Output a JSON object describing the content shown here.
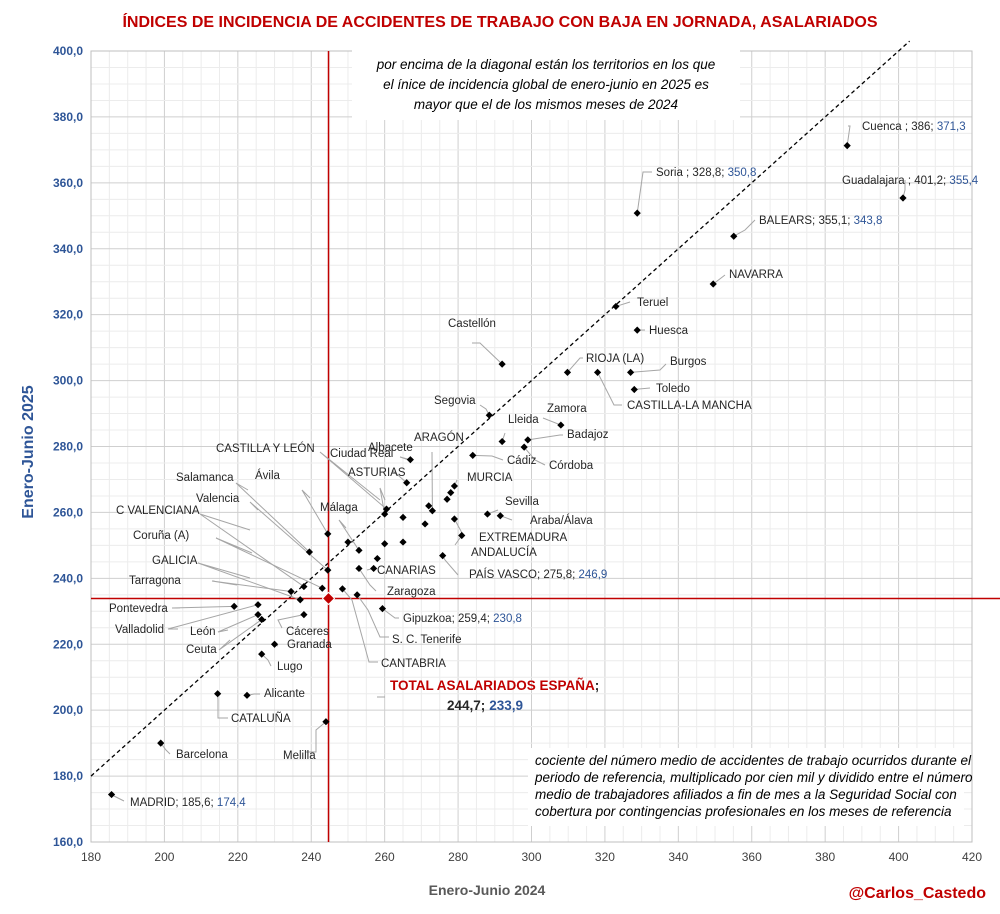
{
  "chart_data": {
    "type": "scatter",
    "title": "ÍNDICES DE INCIDENCIA DE ACCIDENTES DE TRABAJO CON BAJA EN JORNADA, ASALARIADOS",
    "xlabel": "Enero-Junio 2024",
    "ylabel": "Enero-Junio 2025",
    "xlim": [
      180,
      420
    ],
    "ylim": [
      160,
      400
    ],
    "x_ticks": [
      "180",
      "200",
      "220",
      "240",
      "260",
      "280",
      "300",
      "320",
      "340",
      "360",
      "380",
      "400",
      "420"
    ],
    "y_ticks": [
      "160,0",
      "180,0",
      "200,0",
      "220,0",
      "240,0",
      "260,0",
      "280,0",
      "300,0",
      "320,0",
      "340,0",
      "360,0",
      "380,0",
      "400,0"
    ],
    "grid": true,
    "diagonal": "y = x",
    "reference": {
      "x": 244.7,
      "y": 233.9,
      "name": "TOTAL ASALARIADOS ESPAÑA",
      "sep": ";",
      "x_text": "244,7;",
      "y_text": "233,9"
    },
    "points": [
      {
        "name": "Cuenca",
        "x": 386.0,
        "y": 371.3,
        "lbl": "Cuenca ; 386; ",
        "val": "371,3"
      },
      {
        "name": "Guadalajara",
        "x": 401.2,
        "y": 355.4,
        "lbl": "Guadalajara ; 401,2; ",
        "val": "355,4"
      },
      {
        "name": "Soria",
        "x": 328.8,
        "y": 350.8,
        "lbl": "Soria ; 328,8; ",
        "val": "350,8"
      },
      {
        "name": "BALEARS",
        "x": 355.1,
        "y": 343.8,
        "lbl": "BALEARS; 355,1; ",
        "val": "343,8"
      },
      {
        "name": "NAVARRA",
        "x": 349.5,
        "y": 329.3,
        "lbl": "NAVARRA",
        "val": ""
      },
      {
        "name": "Teruel",
        "x": 323.0,
        "y": 322.5,
        "lbl": "Teruel",
        "val": ""
      },
      {
        "name": "Huesca",
        "x": 328.8,
        "y": 315.3,
        "lbl": "Huesca",
        "val": ""
      },
      {
        "name": "Castellón",
        "x": 292.0,
        "y": 305.0,
        "lbl": "Castellón",
        "val": ""
      },
      {
        "name": "RIOJA (LA)",
        "x": 309.8,
        "y": 302.5,
        "lbl": "RIOJA (LA)",
        "val": ""
      },
      {
        "name": "Burgos",
        "x": 327.0,
        "y": 302.5,
        "lbl": "Burgos",
        "val": ""
      },
      {
        "name": "CASTILLA-LA MANCHA",
        "x": 318.0,
        "y": 302.5,
        "lbl": "CASTILLA-LA MANCHA",
        "val": ""
      },
      {
        "name": "Toledo",
        "x": 328.0,
        "y": 297.3,
        "lbl": "Toledo",
        "val": ""
      },
      {
        "name": "Segovia",
        "x": 288.5,
        "y": 289.5,
        "lbl": "Segovia",
        "val": ""
      },
      {
        "name": "Zamora",
        "x": 308.0,
        "y": 286.5,
        "lbl": "Zamora",
        "val": ""
      },
      {
        "name": "Lleida",
        "x": 292.0,
        "y": 281.5,
        "lbl": "Lleida",
        "val": ""
      },
      {
        "name": "Badajoz",
        "x": 299.0,
        "y": 282.0,
        "lbl": "Badajoz",
        "val": ""
      },
      {
        "name": "Córdoba",
        "x": 298.0,
        "y": 279.8,
        "lbl": "Córdoba",
        "val": ""
      },
      {
        "name": "Cádiz",
        "x": 284.0,
        "y": 277.3,
        "lbl": "Cádiz",
        "val": ""
      },
      {
        "name": "Albacete",
        "x": 267.0,
        "y": 276.0,
        "lbl": "Albacete",
        "val": ""
      },
      {
        "name": "ARAGÓN",
        "x": 273.0,
        "y": 260.5,
        "lbl": "ARAGÓN",
        "val": ""
      },
      {
        "name": "CASTILLA Y LEÓN",
        "x": 260.5,
        "y": 261.0,
        "lbl": "CASTILLA Y LEÓN",
        "val": ""
      },
      {
        "name": "Ciudad Real",
        "x": 266.0,
        "y": 269.0,
        "lbl": "Ciudad Real",
        "val": ""
      },
      {
        "name": "ASTURIAS",
        "x": 260.0,
        "y": 259.5,
        "lbl": "ASTURIAS",
        "val": ""
      },
      {
        "name": "MURCIA",
        "x": 279.0,
        "y": 268.0,
        "lbl": "MURCIA",
        "val": ""
      },
      {
        "name": "Sevilla",
        "x": 288.0,
        "y": 259.5,
        "lbl": "Sevilla",
        "val": ""
      },
      {
        "name": "Araba/Álava",
        "x": 291.5,
        "y": 259.0,
        "lbl": "Araba/Álava",
        "val": ""
      },
      {
        "name": "EXTREMADURA",
        "x": 279.0,
        "y": 258.0,
        "lbl": "EXTREMADURA",
        "val": ""
      },
      {
        "name": "ANDALUCÍA",
        "x": 281.0,
        "y": 253.0,
        "lbl": "ANDALUCÍA",
        "val": ""
      },
      {
        "name": "PAÍS VASCO",
        "x": 275.8,
        "y": 246.9,
        "lbl": "PAÍS VASCO; 275,8; ",
        "val": "246,9"
      },
      {
        "name": "Ávila",
        "x": 244.5,
        "y": 253.5,
        "lbl": "Ávila",
        "val": ""
      },
      {
        "name": "Salamanca",
        "x": 239.5,
        "y": 248.0,
        "lbl": "Salamanca",
        "val": ""
      },
      {
        "name": "Valencia",
        "x": 244.5,
        "y": 242.5,
        "lbl": "Valencia",
        "val": ""
      },
      {
        "name": "Málaga",
        "x": 253.0,
        "y": 248.5,
        "lbl": "Málaga",
        "val": ""
      },
      {
        "name": "C VALENCIANA",
        "x": 238.0,
        "y": 237.5,
        "lbl": "C VALENCIANA",
        "val": ""
      },
      {
        "name": "Coruña (A)",
        "x": 243.0,
        "y": 237.0,
        "lbl": "Coruña (A)",
        "val": ""
      },
      {
        "name": "GALICIA",
        "x": 237.0,
        "y": 233.5,
        "lbl": "GALICIA",
        "val": ""
      },
      {
        "name": "Tarragona",
        "x": 234.5,
        "y": 236.0,
        "lbl": "Tarragona",
        "val": ""
      },
      {
        "name": "CANARIAS",
        "x": 257.0,
        "y": 243.0,
        "lbl": "CANARIAS",
        "val": ""
      },
      {
        "name": "Zaragoza",
        "x": 253.0,
        "y": 243.0,
        "lbl": "Zaragoza",
        "val": ""
      },
      {
        "name": "Pontevedra",
        "x": 219.0,
        "y": 231.5,
        "lbl": "Pontevedra",
        "val": ""
      },
      {
        "name": "Valladolid",
        "x": 225.5,
        "y": 232.0,
        "lbl": "Valladolid",
        "val": ""
      },
      {
        "name": "León",
        "x": 225.5,
        "y": 229.0,
        "lbl": "León",
        "val": ""
      },
      {
        "name": "Ceuta",
        "x": 226.5,
        "y": 227.5,
        "lbl": "Ceuta",
        "val": ""
      },
      {
        "name": "Cáceres",
        "x": 238.0,
        "y": 229.0,
        "lbl": "Cáceres",
        "val": ""
      },
      {
        "name": "Granada",
        "x": 230.0,
        "y": 220.0,
        "lbl": "Granada",
        "val": ""
      },
      {
        "name": "Lugo",
        "x": 226.5,
        "y": 217.0,
        "lbl": "Lugo",
        "val": ""
      },
      {
        "name": "Gipuzkoa",
        "x": 259.4,
        "y": 230.8,
        "lbl": "Gipuzkoa; 259,4; ",
        "val": "230,8"
      },
      {
        "name": "S. C. Tenerife",
        "x": 252.5,
        "y": 235.0,
        "lbl": "S. C. Tenerife",
        "val": ""
      },
      {
        "name": "CANTABRIA",
        "x": 248.5,
        "y": 236.8,
        "lbl": "CANTABRIA",
        "val": ""
      },
      {
        "name": "Alicante",
        "x": 222.5,
        "y": 204.5,
        "lbl": "Alicante",
        "val": ""
      },
      {
        "name": "CATALUÑA",
        "x": 214.5,
        "y": 205.0,
        "lbl": "CATALUÑA",
        "val": ""
      },
      {
        "name": "Melilla",
        "x": 244.0,
        "y": 196.5,
        "lbl": "Melilla",
        "val": ""
      },
      {
        "name": "Barcelona",
        "x": 199.0,
        "y": 190.0,
        "lbl": "Barcelona",
        "val": ""
      },
      {
        "name": "MADRID",
        "x": 185.6,
        "y": 174.4,
        "lbl": "MADRID; 185,6; ",
        "val": "174,4"
      }
    ],
    "extra_dots": [
      {
        "x": 265.0,
        "y": 258.5
      },
      {
        "x": 265.0,
        "y": 251.0
      },
      {
        "x": 260.0,
        "y": 250.5
      },
      {
        "x": 258.0,
        "y": 246.0
      },
      {
        "x": 271.0,
        "y": 256.5
      },
      {
        "x": 272.0,
        "y": 262.0
      },
      {
        "x": 277.0,
        "y": 264.0
      },
      {
        "x": 278.0,
        "y": 266.0
      },
      {
        "x": 250.0,
        "y": 251.0
      }
    ],
    "annotation_top": [
      "por encima de la diagonal están los territorios en los que",
      "el ínice de incidencia global de enero-junio en 2025 es",
      "mayor que el de los mismos meses de 2024"
    ],
    "annotation_bottom": [
      "cociente del número medio de accidentes de trabajo ocurridos durante el",
      "periodo de referencia, multiplicado por cien mil y dividido entre el número",
      "medio de trabajadores afiliados a fin de mes a la Seguridad Social con",
      "cobertura por contingencias profesionales en los meses de referencia"
    ],
    "credit": "@Carlos_Castedo"
  },
  "colors": {
    "title": "#c00000",
    "axis_blue": "#2e5597",
    "ref_line": "#c00000",
    "marker": "#000000",
    "grid": "#d9d9d9"
  }
}
